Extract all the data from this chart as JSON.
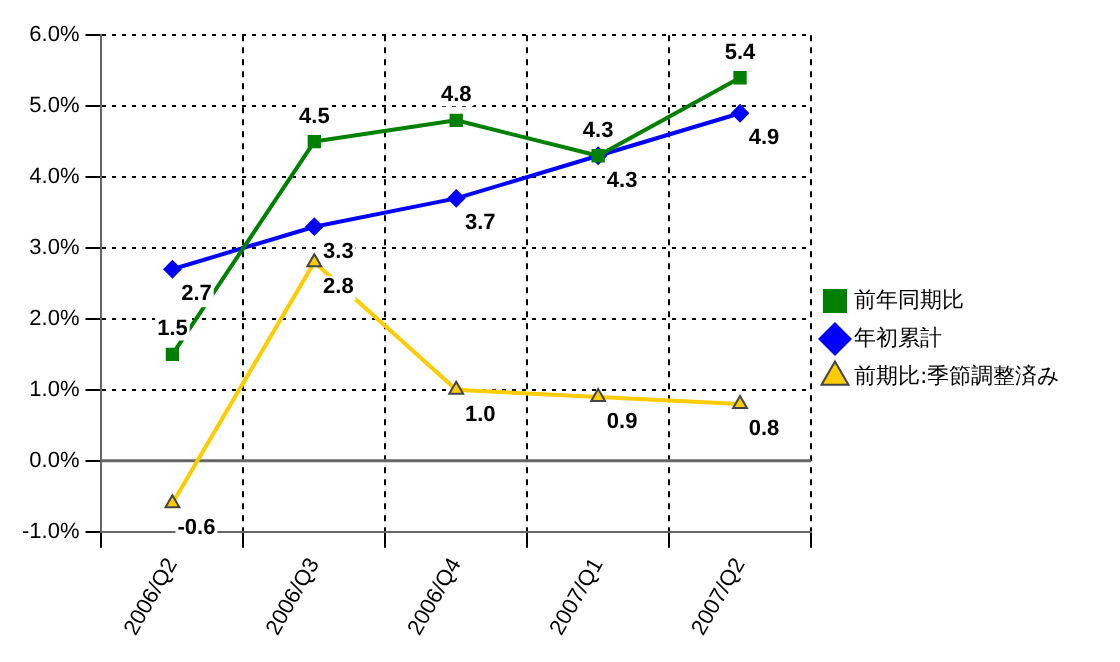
{
  "chart_data": {
    "type": "line",
    "categories": [
      "2006/Q2",
      "2006/Q3",
      "2006/Q4",
      "2007/Q1",
      "2007/Q2"
    ],
    "series": [
      {
        "name": "前年同期比",
        "color": "#008000",
        "marker": "square",
        "values": [
          1.5,
          4.5,
          4.8,
          4.3,
          5.4
        ],
        "value_labels": [
          "1.5",
          "4.5",
          "4.8",
          "4.3",
          "5.4"
        ]
      },
      {
        "name": "年初累計",
        "color": "#0000ff",
        "marker": "diamond",
        "values": [
          2.7,
          3.3,
          3.7,
          4.3,
          4.9
        ],
        "value_labels": [
          "2.7",
          "3.3",
          "3.7",
          "4.3",
          "4.9"
        ]
      },
      {
        "name": "前期比:季節調整済み",
        "color": "#ffcc00",
        "marker": "triangle",
        "values": [
          -0.6,
          2.8,
          1.0,
          0.9,
          0.8
        ],
        "value_labels": [
          "-0.6",
          "2.8",
          "1.0",
          "0.9",
          "0.8"
        ]
      }
    ],
    "ylim": [
      -1,
      6
    ],
    "yticks": [
      {
        "value": -1,
        "label": "-1.0%"
      },
      {
        "value": 0,
        "label": "0.0%"
      },
      {
        "value": 1,
        "label": "1.0%"
      },
      {
        "value": 2,
        "label": "2.0%"
      },
      {
        "value": 3,
        "label": "3.0%"
      },
      {
        "value": 4,
        "label": "4.0%"
      },
      {
        "value": 5,
        "label": "5.0%"
      },
      {
        "value": 6,
        "label": "6.0%"
      }
    ],
    "grid": true,
    "legend": "right",
    "ref_lines": [
      {
        "axis": "y",
        "value": 0,
        "color": "#666666"
      }
    ]
  }
}
